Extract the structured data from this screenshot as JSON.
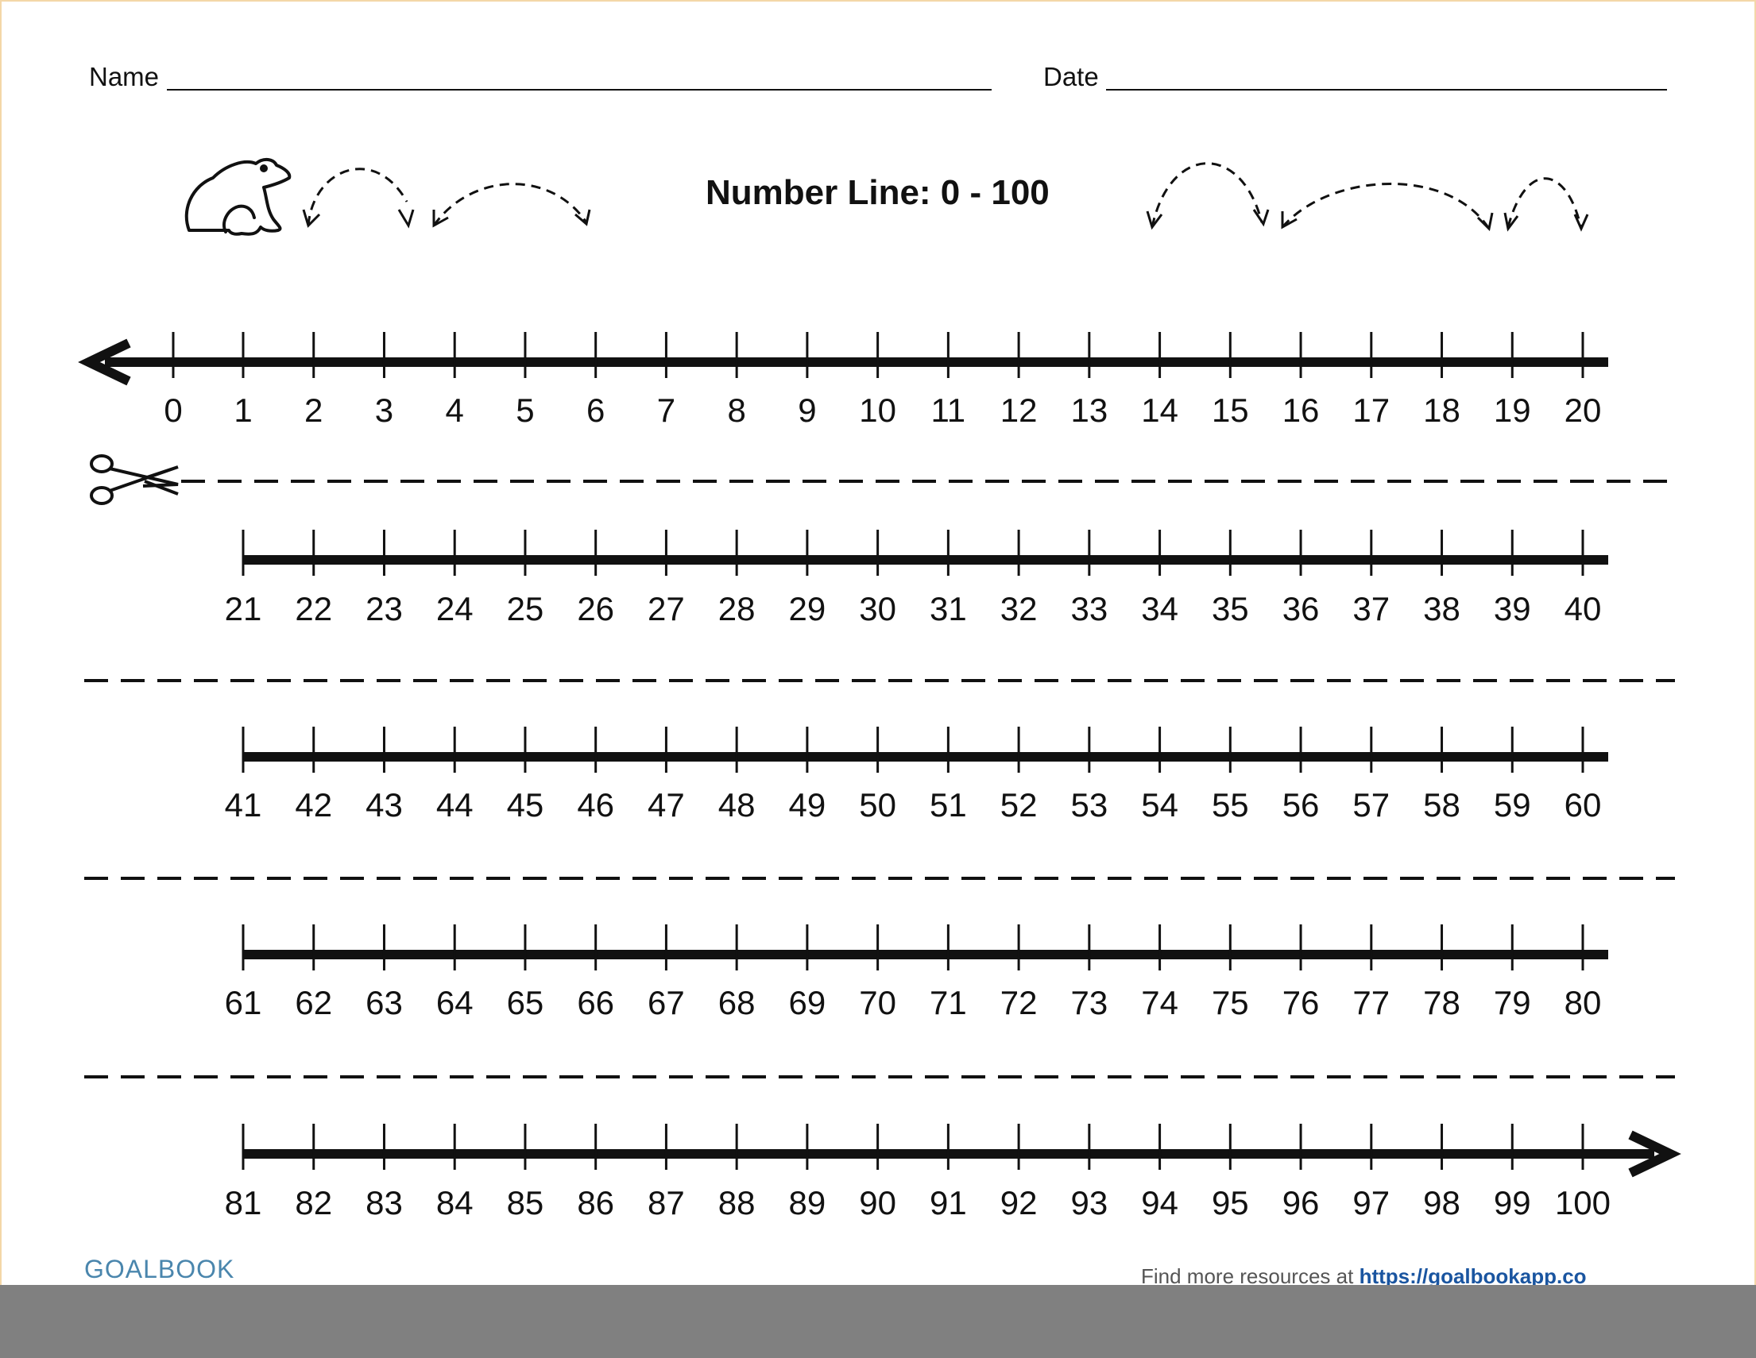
{
  "header": {
    "name_label": "Name",
    "date_label": "Date"
  },
  "title": "Number Line: 0 - 100",
  "rows": [
    {
      "start": 0,
      "end": 20,
      "left_arrow": true,
      "right_arrow": false
    },
    {
      "start": 21,
      "end": 40,
      "left_arrow": false,
      "right_arrow": false
    },
    {
      "start": 41,
      "end": 60,
      "left_arrow": false,
      "right_arrow": false
    },
    {
      "start": 61,
      "end": 80,
      "left_arrow": false,
      "right_arrow": false
    },
    {
      "start": 81,
      "end": 100,
      "left_arrow": false,
      "right_arrow": true
    }
  ],
  "icons": [
    "frog-icon",
    "scissors-icon",
    "hop-arrow-icon"
  ],
  "footer": {
    "logo": "GOALBOOK",
    "text": "Find more resources at ",
    "link": "https://goalbookapp.co"
  },
  "colors": {
    "ink": "#111111",
    "logo": "#4a86ad",
    "link": "#1a55a0",
    "border": "#f4d7a8"
  }
}
